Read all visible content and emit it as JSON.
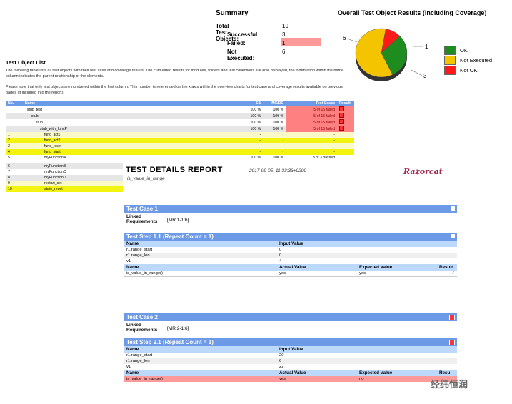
{
  "summary": {
    "title": "Summary",
    "total_label": "Total Test Objects:",
    "total": "10",
    "successful_label": "Successful:",
    "successful": "3",
    "failed_label": "Failed:",
    "failed": "1",
    "not_executed_label": "Not Executed:",
    "not_executed": "6"
  },
  "chart_data": {
    "type": "pie",
    "title": "Overall Test Object Results (including Coverage)",
    "slices": [
      {
        "label": "OK",
        "value": 3,
        "color": "#1e8c1e"
      },
      {
        "label": "Not Executed",
        "value": 6,
        "color": "#f5c400"
      },
      {
        "label": "Not OK",
        "value": 1,
        "color": "#ff1a1a"
      }
    ],
    "data_labels": [
      "6",
      "1",
      "3"
    ],
    "legend": "right"
  },
  "test_object_list": {
    "title": "Test Object List",
    "para1": "The following table lists all test objects with their test case and coverage results. The cumulated results for modules, folders and test collections are also displayed, the indentation within the name column indicates the parent relationship of the elements.",
    "para2": "Please note that only test objects are numbered within the first column. This number is referenced on the x axis within the overview charts for test case and coverage results available on previous pages (if included into the report).",
    "headers": [
      "No.",
      "Name",
      "C1",
      "MC/DC",
      "Test Cases",
      "Result"
    ],
    "rows": [
      {
        "no": "",
        "name": "stub_test",
        "indent": 2,
        "c1": "100 %",
        "mcdc": "100 %",
        "tc": "5 of 15 failed",
        "bad": true,
        "cls": "row-white"
      },
      {
        "no": "",
        "name": "stub",
        "indent": 4,
        "c1": "100 %",
        "mcdc": "100 %",
        "tc": "5 of 15 failed",
        "bad": true,
        "cls": "row-gray"
      },
      {
        "no": "",
        "name": "stub",
        "indent": 6,
        "c1": "100 %",
        "mcdc": "100 %",
        "tc": "5 of 15 failed",
        "bad": true,
        "cls": "row-white"
      },
      {
        "no": "",
        "name": "stub_with_funcP",
        "indent": 8,
        "c1": "100 %",
        "mcdc": "100 %",
        "tc": "5 of 15 failed",
        "bad": true,
        "cls": "row-gray"
      },
      {
        "no": "1",
        "name": "func_act1",
        "indent": 10,
        "c1": "-",
        "mcdc": "-",
        "tc": "-",
        "bad": false,
        "cls": "row-lyel"
      },
      {
        "no": "2",
        "name": "func_act2",
        "indent": 10,
        "c1": "-",
        "mcdc": "-",
        "tc": "-",
        "bad": false,
        "cls": "row-yel"
      },
      {
        "no": "3",
        "name": "func_reset",
        "indent": 10,
        "c1": "-",
        "mcdc": "-",
        "tc": "-",
        "bad": false,
        "cls": "row-lyel"
      },
      {
        "no": "4",
        "name": "func_start",
        "indent": 10,
        "c1": "-",
        "mcdc": "-",
        "tc": "-",
        "bad": false,
        "cls": "row-yel"
      },
      {
        "no": "5",
        "name": "myFunctionA",
        "indent": 10,
        "c1": "100 %",
        "mcdc": "100 %",
        "tc": "3 of 3 passed",
        "bad": false,
        "cls": "row-white"
      }
    ],
    "tail_rows": [
      {
        "no": "6",
        "name": "myFunctionB",
        "cls": "row-gray"
      },
      {
        "no": "7",
        "name": "myFunctionC",
        "cls": "row-white"
      },
      {
        "no": "8",
        "name": "myFunctionD",
        "cls": "row-gray"
      },
      {
        "no": "9",
        "name": "restart_set",
        "cls": "row-lyel"
      },
      {
        "no": "10",
        "name": "state_reset",
        "cls": "row-yel"
      }
    ]
  },
  "report": {
    "title": "TEST DETAILS REPORT",
    "subtitle": "is_value_in_range",
    "date": "2017-09-05, 11:33:33+0200",
    "logo": "Razorcat",
    "tc1": {
      "title": "Test Case 1",
      "linked_label1": "Linked",
      "linked_label2": "Requirements",
      "linked_value": "[MR:1-1:6]",
      "step_title": "Test Step 1.1 (Repeat Count = 1)",
      "in_headers": [
        "Name",
        "Input Value"
      ],
      "inputs": [
        [
          "r1.range_start",
          "0"
        ],
        [
          "r1.range_len",
          "0"
        ],
        [
          "v1",
          "4"
        ]
      ],
      "out_headers": [
        "Name",
        "Actual Value",
        "Expected Value",
        "Result"
      ],
      "outputs": [
        [
          "is_value_in_range()",
          "yes",
          "yes",
          "✓"
        ]
      ]
    },
    "tc2": {
      "title": "Test Case 2",
      "linked_label1": "Linked",
      "linked_label2": "Requirements",
      "linked_value": "[MR:2-1:6]",
      "step_title": "Test Step 2.1 (Repeat Count = 1)",
      "in_headers": [
        "Name",
        "Input Value"
      ],
      "inputs": [
        [
          "r1.range_start",
          "20"
        ],
        [
          "r1.range_len",
          "6"
        ],
        [
          "v1",
          "22"
        ]
      ],
      "out_headers": [
        "Name",
        "Actual Value",
        "Expected Value",
        "Resu"
      ],
      "outputs": [
        [
          "is_value_in_range()",
          "yes",
          "no",
          ""
        ]
      ]
    }
  },
  "watermark": "经纬恒润"
}
